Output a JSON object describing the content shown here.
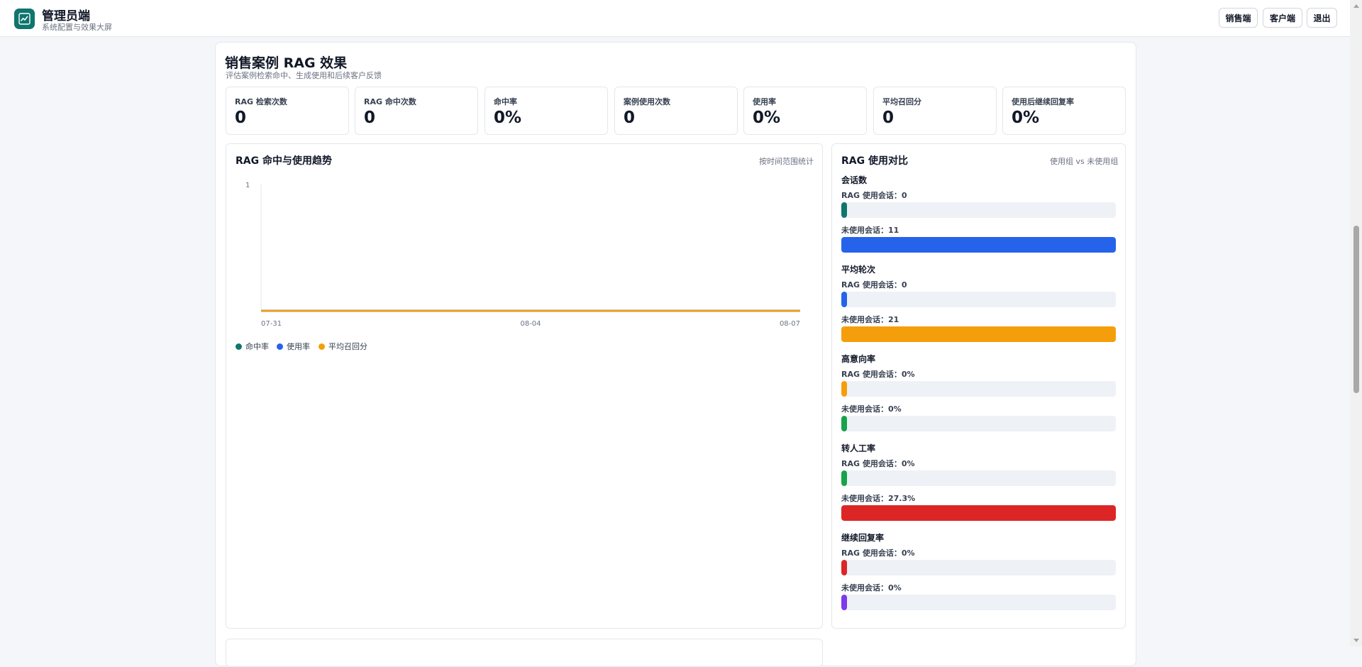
{
  "header": {
    "title": "管理员端",
    "subtitle": "系统配置与效果大屏",
    "buttons": [
      "销售端",
      "客户端",
      "退出"
    ]
  },
  "section": {
    "title": "销售案例 RAG 效果",
    "subtitle": "评估案例检索命中、生成使用和后续客户反馈"
  },
  "stats": [
    {
      "label": "RAG 检索次数",
      "value": "0"
    },
    {
      "label": "RAG 命中次数",
      "value": "0"
    },
    {
      "label": "命中率",
      "value": "0%"
    },
    {
      "label": "案例使用次数",
      "value": "0"
    },
    {
      "label": "使用率",
      "value": "0%"
    },
    {
      "label": "平均召回分",
      "value": "0"
    },
    {
      "label": "使用后继续回复率",
      "value": "0%"
    }
  ],
  "trend": {
    "title": "RAG 命中与使用趋势",
    "note": "按时间范围统计",
    "legend": [
      {
        "name": "命中率",
        "color": "#0f766e"
      },
      {
        "name": "使用率",
        "color": "#2563eb"
      },
      {
        "name": "平均召回分",
        "color": "#f59e0b"
      }
    ]
  },
  "chart_data": {
    "type": "line",
    "x": [
      "07-31",
      "08-04",
      "08-07"
    ],
    "series": [
      {
        "name": "命中率",
        "values": [
          0,
          0,
          0
        ]
      },
      {
        "name": "使用率",
        "values": [
          0,
          0,
          0
        ]
      },
      {
        "name": "平均召回分",
        "values": [
          0,
          0,
          0
        ]
      }
    ],
    "ylim": [
      0,
      1
    ],
    "y_ticks": [
      "1"
    ],
    "grid": false,
    "legend_position": "bottom-left"
  },
  "compare": {
    "title": "RAG 使用对比",
    "note": "使用组 vs 未使用组",
    "groups": [
      {
        "title": "会话数",
        "rows": [
          {
            "label": "RAG 使用会话：0",
            "fraction": 0,
            "color": "#0f766e"
          },
          {
            "label": "未使用会话：11",
            "fraction": 1,
            "color": "#2563eb"
          }
        ]
      },
      {
        "title": "平均轮次",
        "rows": [
          {
            "label": "RAG 使用会话：0",
            "fraction": 0,
            "color": "#2563eb"
          },
          {
            "label": "未使用会话：21",
            "fraction": 1,
            "color": "#f59e0b"
          }
        ]
      },
      {
        "title": "高意向率",
        "rows": [
          {
            "label": "RAG 使用会话：0%",
            "fraction": 0,
            "color": "#f59e0b"
          },
          {
            "label": "未使用会话：0%",
            "fraction": 0,
            "color": "#16a34a"
          }
        ]
      },
      {
        "title": "转人工率",
        "rows": [
          {
            "label": "RAG 使用会话：0%",
            "fraction": 0,
            "color": "#16a34a"
          },
          {
            "label": "未使用会话：27.3%",
            "fraction": 1,
            "color": "#dc2626"
          }
        ]
      },
      {
        "title": "继续回复率",
        "rows": [
          {
            "label": "RAG 使用会话：0%",
            "fraction": 0,
            "color": "#dc2626"
          },
          {
            "label": "未使用会话：0%",
            "fraction": 0,
            "color": "#7c3aed"
          }
        ]
      }
    ]
  }
}
